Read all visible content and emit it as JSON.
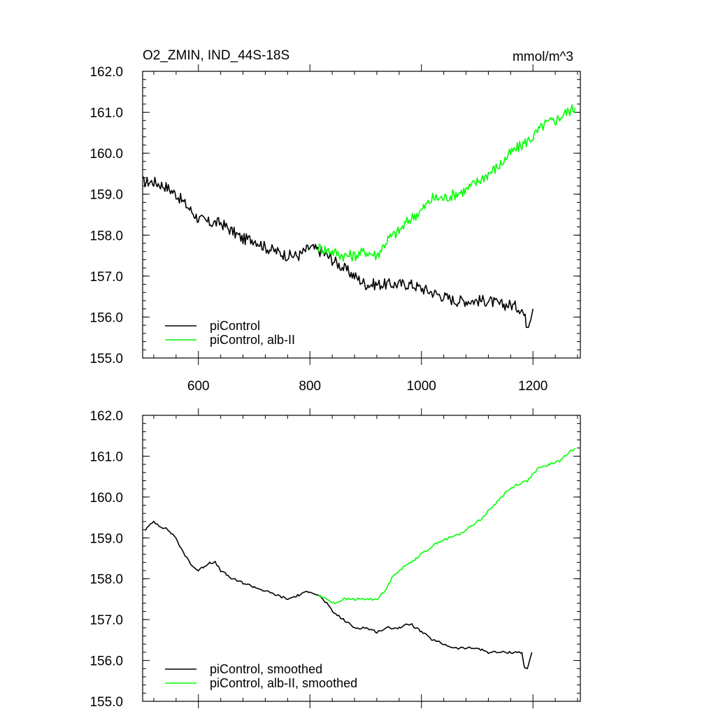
{
  "chart_data": [
    {
      "type": "line",
      "title": "O2_ZMIN, IND_44S-18S",
      "units": "mmol/m^3",
      "xlim": [
        500,
        1285
      ],
      "ylim": [
        155.0,
        162.0
      ],
      "x_ticks": [
        600,
        800,
        1000,
        1200
      ],
      "x_tick_labels": [
        "600",
        "800",
        "1000",
        "1200"
      ],
      "y_ticks": [
        155.0,
        156.0,
        157.0,
        158.0,
        159.0,
        160.0,
        161.0,
        162.0
      ],
      "y_tick_labels": [
        "155.0",
        "156.0",
        "157.0",
        "158.0",
        "159.0",
        "160.0",
        "161.0",
        "162.0"
      ],
      "grid": false,
      "legend_position": "bottom-left",
      "legend": [
        "piControl",
        "piControl, alb-II"
      ],
      "series": [
        {
          "name": "piControl",
          "color": "#000000",
          "x": [
            500,
            520,
            540,
            560,
            580,
            600,
            620,
            640,
            660,
            680,
            700,
            720,
            740,
            760,
            780,
            800,
            820,
            840,
            860,
            880,
            900,
            920,
            940,
            960,
            980,
            1000,
            1020,
            1040,
            1060,
            1080,
            1100,
            1120,
            1140,
            1160,
            1180,
            1190,
            1200
          ],
          "y": [
            159.3,
            159.3,
            159.2,
            159.0,
            158.7,
            158.4,
            158.3,
            158.3,
            158.1,
            157.9,
            157.9,
            157.7,
            157.6,
            157.5,
            157.5,
            157.7,
            157.6,
            157.4,
            157.2,
            157.0,
            156.8,
            156.8,
            156.8,
            156.8,
            156.8,
            156.7,
            156.6,
            156.5,
            156.4,
            156.4,
            156.4,
            156.4,
            156.3,
            156.3,
            156.2,
            155.8,
            156.2
          ]
        },
        {
          "name": "piControl, alb-II",
          "color": "#00ff00",
          "x": [
            815,
            840,
            860,
            880,
            900,
            920,
            940,
            960,
            980,
            1000,
            1020,
            1040,
            1060,
            1080,
            1100,
            1120,
            1140,
            1160,
            1180,
            1200,
            1220,
            1240,
            1260,
            1275
          ],
          "y": [
            157.7,
            157.6,
            157.5,
            157.5,
            157.6,
            157.5,
            157.9,
            158.1,
            158.4,
            158.6,
            158.9,
            158.9,
            159.0,
            159.1,
            159.3,
            159.5,
            159.7,
            160.0,
            160.2,
            160.4,
            160.7,
            160.8,
            161.0,
            161.1
          ]
        }
      ]
    },
    {
      "type": "line",
      "title": "",
      "xlim": [
        500,
        1285
      ],
      "ylim": [
        155.0,
        162.0
      ],
      "x_ticks": [
        600,
        800,
        1000,
        1200
      ],
      "y_ticks": [
        155.0,
        156.0,
        157.0,
        158.0,
        159.0,
        160.0,
        161.0,
        162.0
      ],
      "y_tick_labels": [
        "155.0",
        "156.0",
        "157.0",
        "158.0",
        "159.0",
        "160.0",
        "161.0",
        "162.0"
      ],
      "grid": false,
      "legend_position": "bottom-left",
      "legend": [
        "piControl, smoothed",
        "piControl, alb-II, smoothed"
      ],
      "series": [
        {
          "name": "piControl, smoothed",
          "color": "#000000",
          "x": [
            505,
            520,
            530,
            545,
            560,
            570,
            580,
            590,
            600,
            610,
            620,
            630,
            640,
            650,
            660,
            680,
            700,
            720,
            740,
            760,
            780,
            800,
            815,
            830,
            840,
            860,
            880,
            900,
            920,
            940,
            960,
            980,
            1000,
            1020,
            1040,
            1060,
            1080,
            1100,
            1120,
            1140,
            1160,
            1180,
            1185,
            1190,
            1198
          ],
          "y": [
            159.2,
            159.4,
            159.3,
            159.2,
            159.0,
            158.7,
            158.5,
            158.3,
            158.2,
            158.3,
            158.4,
            158.4,
            158.2,
            158.1,
            158.0,
            157.9,
            157.8,
            157.7,
            157.6,
            157.5,
            157.6,
            157.7,
            157.6,
            157.4,
            157.2,
            157.0,
            156.8,
            156.8,
            156.7,
            156.8,
            156.8,
            156.9,
            156.7,
            156.5,
            156.4,
            156.3,
            156.3,
            156.3,
            156.2,
            156.2,
            156.2,
            156.2,
            155.8,
            155.8,
            156.2
          ]
        },
        {
          "name": "piControl, alb-II, smoothed",
          "color": "#00ff00",
          "x": [
            815,
            830,
            845,
            860,
            880,
            900,
            920,
            935,
            950,
            970,
            990,
            1010,
            1030,
            1050,
            1070,
            1090,
            1110,
            1130,
            1150,
            1170,
            1190,
            1210,
            1230,
            1250,
            1265,
            1275
          ],
          "y": [
            157.6,
            157.5,
            157.4,
            157.5,
            157.5,
            157.5,
            157.5,
            157.7,
            158.1,
            158.3,
            158.5,
            158.7,
            158.9,
            159.0,
            159.1,
            159.3,
            159.5,
            159.8,
            160.1,
            160.3,
            160.4,
            160.7,
            160.8,
            160.9,
            161.1,
            161.2
          ]
        }
      ]
    }
  ]
}
